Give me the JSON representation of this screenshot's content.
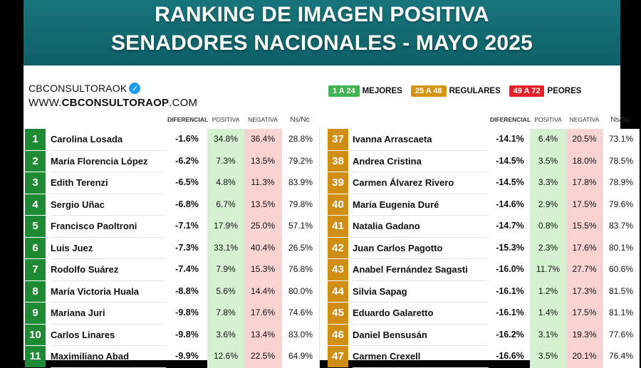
{
  "title_line1": "RANKING DE IMAGEN POSITIVA",
  "title_line2": "SENADORES NACIONALES - MAYO 2025",
  "brand": {
    "name": "CBCONSULTORAOK",
    "website_prefix": "WWW.",
    "website_bold": "CBCONSULTORAOP",
    "website_suffix": ".COM",
    "verified_icon": "verified-check-icon"
  },
  "legend": [
    {
      "range": "1 A 24",
      "label": "MEJORES",
      "color": "#3fb34f"
    },
    {
      "range": "25 A 48",
      "label": "REGULARES",
      "color": "#d59513"
    },
    {
      "range": "49 A 72",
      "label": "PEORES",
      "color": "#e5222b"
    }
  ],
  "columns": {
    "diferencial": "DIFERENCIAL",
    "positiva": "POSITIVA",
    "negativa": "NEGATIVA",
    "nsnc": "Ns/Nc"
  },
  "left_rows": [
    {
      "rank": "1",
      "name": "Carolina Losada",
      "diff": "-1.6%",
      "pos": "34.8%",
      "neg": "36.4%",
      "ns": "28.8%"
    },
    {
      "rank": "2",
      "name": "María Florencia López",
      "diff": "-6.2%",
      "pos": "7.3%",
      "neg": "13.5%",
      "ns": "79.2%"
    },
    {
      "rank": "3",
      "name": "Edith Terenzi",
      "diff": "-6.5%",
      "pos": "4.8%",
      "neg": "11.3%",
      "ns": "83.9%"
    },
    {
      "rank": "4",
      "name": "Sergio Uñac",
      "diff": "-6.8%",
      "pos": "6.7%",
      "neg": "13.5%",
      "ns": "79.8%"
    },
    {
      "rank": "5",
      "name": "Francisco Paoltroni",
      "diff": "-7.1%",
      "pos": "17.9%",
      "neg": "25.0%",
      "ns": "57.1%"
    },
    {
      "rank": "6",
      "name": "Luis Juez",
      "diff": "-7.3%",
      "pos": "33.1%",
      "neg": "40.4%",
      "ns": "26.5%"
    },
    {
      "rank": "7",
      "name": "Rodolfo Suárez",
      "diff": "-7.4%",
      "pos": "7.9%",
      "neg": "15.3%",
      "ns": "76.8%"
    },
    {
      "rank": "8",
      "name": "María Victoria Huala",
      "diff": "-8.8%",
      "pos": "5.6%",
      "neg": "14.4%",
      "ns": "80.0%"
    },
    {
      "rank": "9",
      "name": "Mariana Juri",
      "diff": "-9.8%",
      "pos": "7.8%",
      "neg": "17.6%",
      "ns": "74.6%"
    },
    {
      "rank": "10",
      "name": "Carlos Linares",
      "diff": "-9.8%",
      "pos": "3.6%",
      "neg": "13.4%",
      "ns": "83.0%"
    },
    {
      "rank": "11",
      "name": "Maximiliano Abad",
      "diff": "-9.9%",
      "pos": "12.6%",
      "neg": "22.5%",
      "ns": "64.9%"
    }
  ],
  "right_rows": [
    {
      "rank": "37",
      "name": "Ivanna Arrascaeta",
      "diff": "-14.1%",
      "pos": "6.4%",
      "neg": "20.5%",
      "ns": "73.1%"
    },
    {
      "rank": "38",
      "name": "Andrea Cristina",
      "diff": "-14.5%",
      "pos": "3.5%",
      "neg": "18.0%",
      "ns": "78.5%"
    },
    {
      "rank": "39",
      "name": "Carmen Álvarez Rivero",
      "diff": "-14.5%",
      "pos": "3.3%",
      "neg": "17.8%",
      "ns": "78.9%"
    },
    {
      "rank": "40",
      "name": "María Eugenia Duré",
      "diff": "-14.6%",
      "pos": "2.9%",
      "neg": "17.5%",
      "ns": "79.6%"
    },
    {
      "rank": "41",
      "name": "Natalia Gadano",
      "diff": "-14.7%",
      "pos": "0.8%",
      "neg": "15.5%",
      "ns": "83.7%"
    },
    {
      "rank": "42",
      "name": "Juan Carlos Pagotto",
      "diff": "-15.3%",
      "pos": "2.3%",
      "neg": "17.6%",
      "ns": "80.1%"
    },
    {
      "rank": "43",
      "name": "Anabel Fernández Sagasti",
      "diff": "-16.0%",
      "pos": "11.7%",
      "neg": "27.7%",
      "ns": "60.6%"
    },
    {
      "rank": "44",
      "name": "Silvia Sapag",
      "diff": "-16.1%",
      "pos": "1.2%",
      "neg": "17.3%",
      "ns": "81.5%"
    },
    {
      "rank": "45",
      "name": "Eduardo Galaretto",
      "diff": "-16.1%",
      "pos": "1.4%",
      "neg": "17.5%",
      "ns": "81.1%"
    },
    {
      "rank": "46",
      "name": "Daniel Bensusán",
      "diff": "-16.2%",
      "pos": "3.1%",
      "neg": "19.3%",
      "ns": "77.6%"
    },
    {
      "rank": "47",
      "name": "Carmen Crexell",
      "diff": "-16.6%",
      "pos": "3.5%",
      "neg": "20.1%",
      "ns": "76.4%"
    }
  ],
  "colors": {
    "banner": "#13707a",
    "mejores": "#1e8a34",
    "regulares": "#d08e17",
    "positiva_bg": "#d6f0d2",
    "negativa_bg": "#f9d2d2"
  }
}
